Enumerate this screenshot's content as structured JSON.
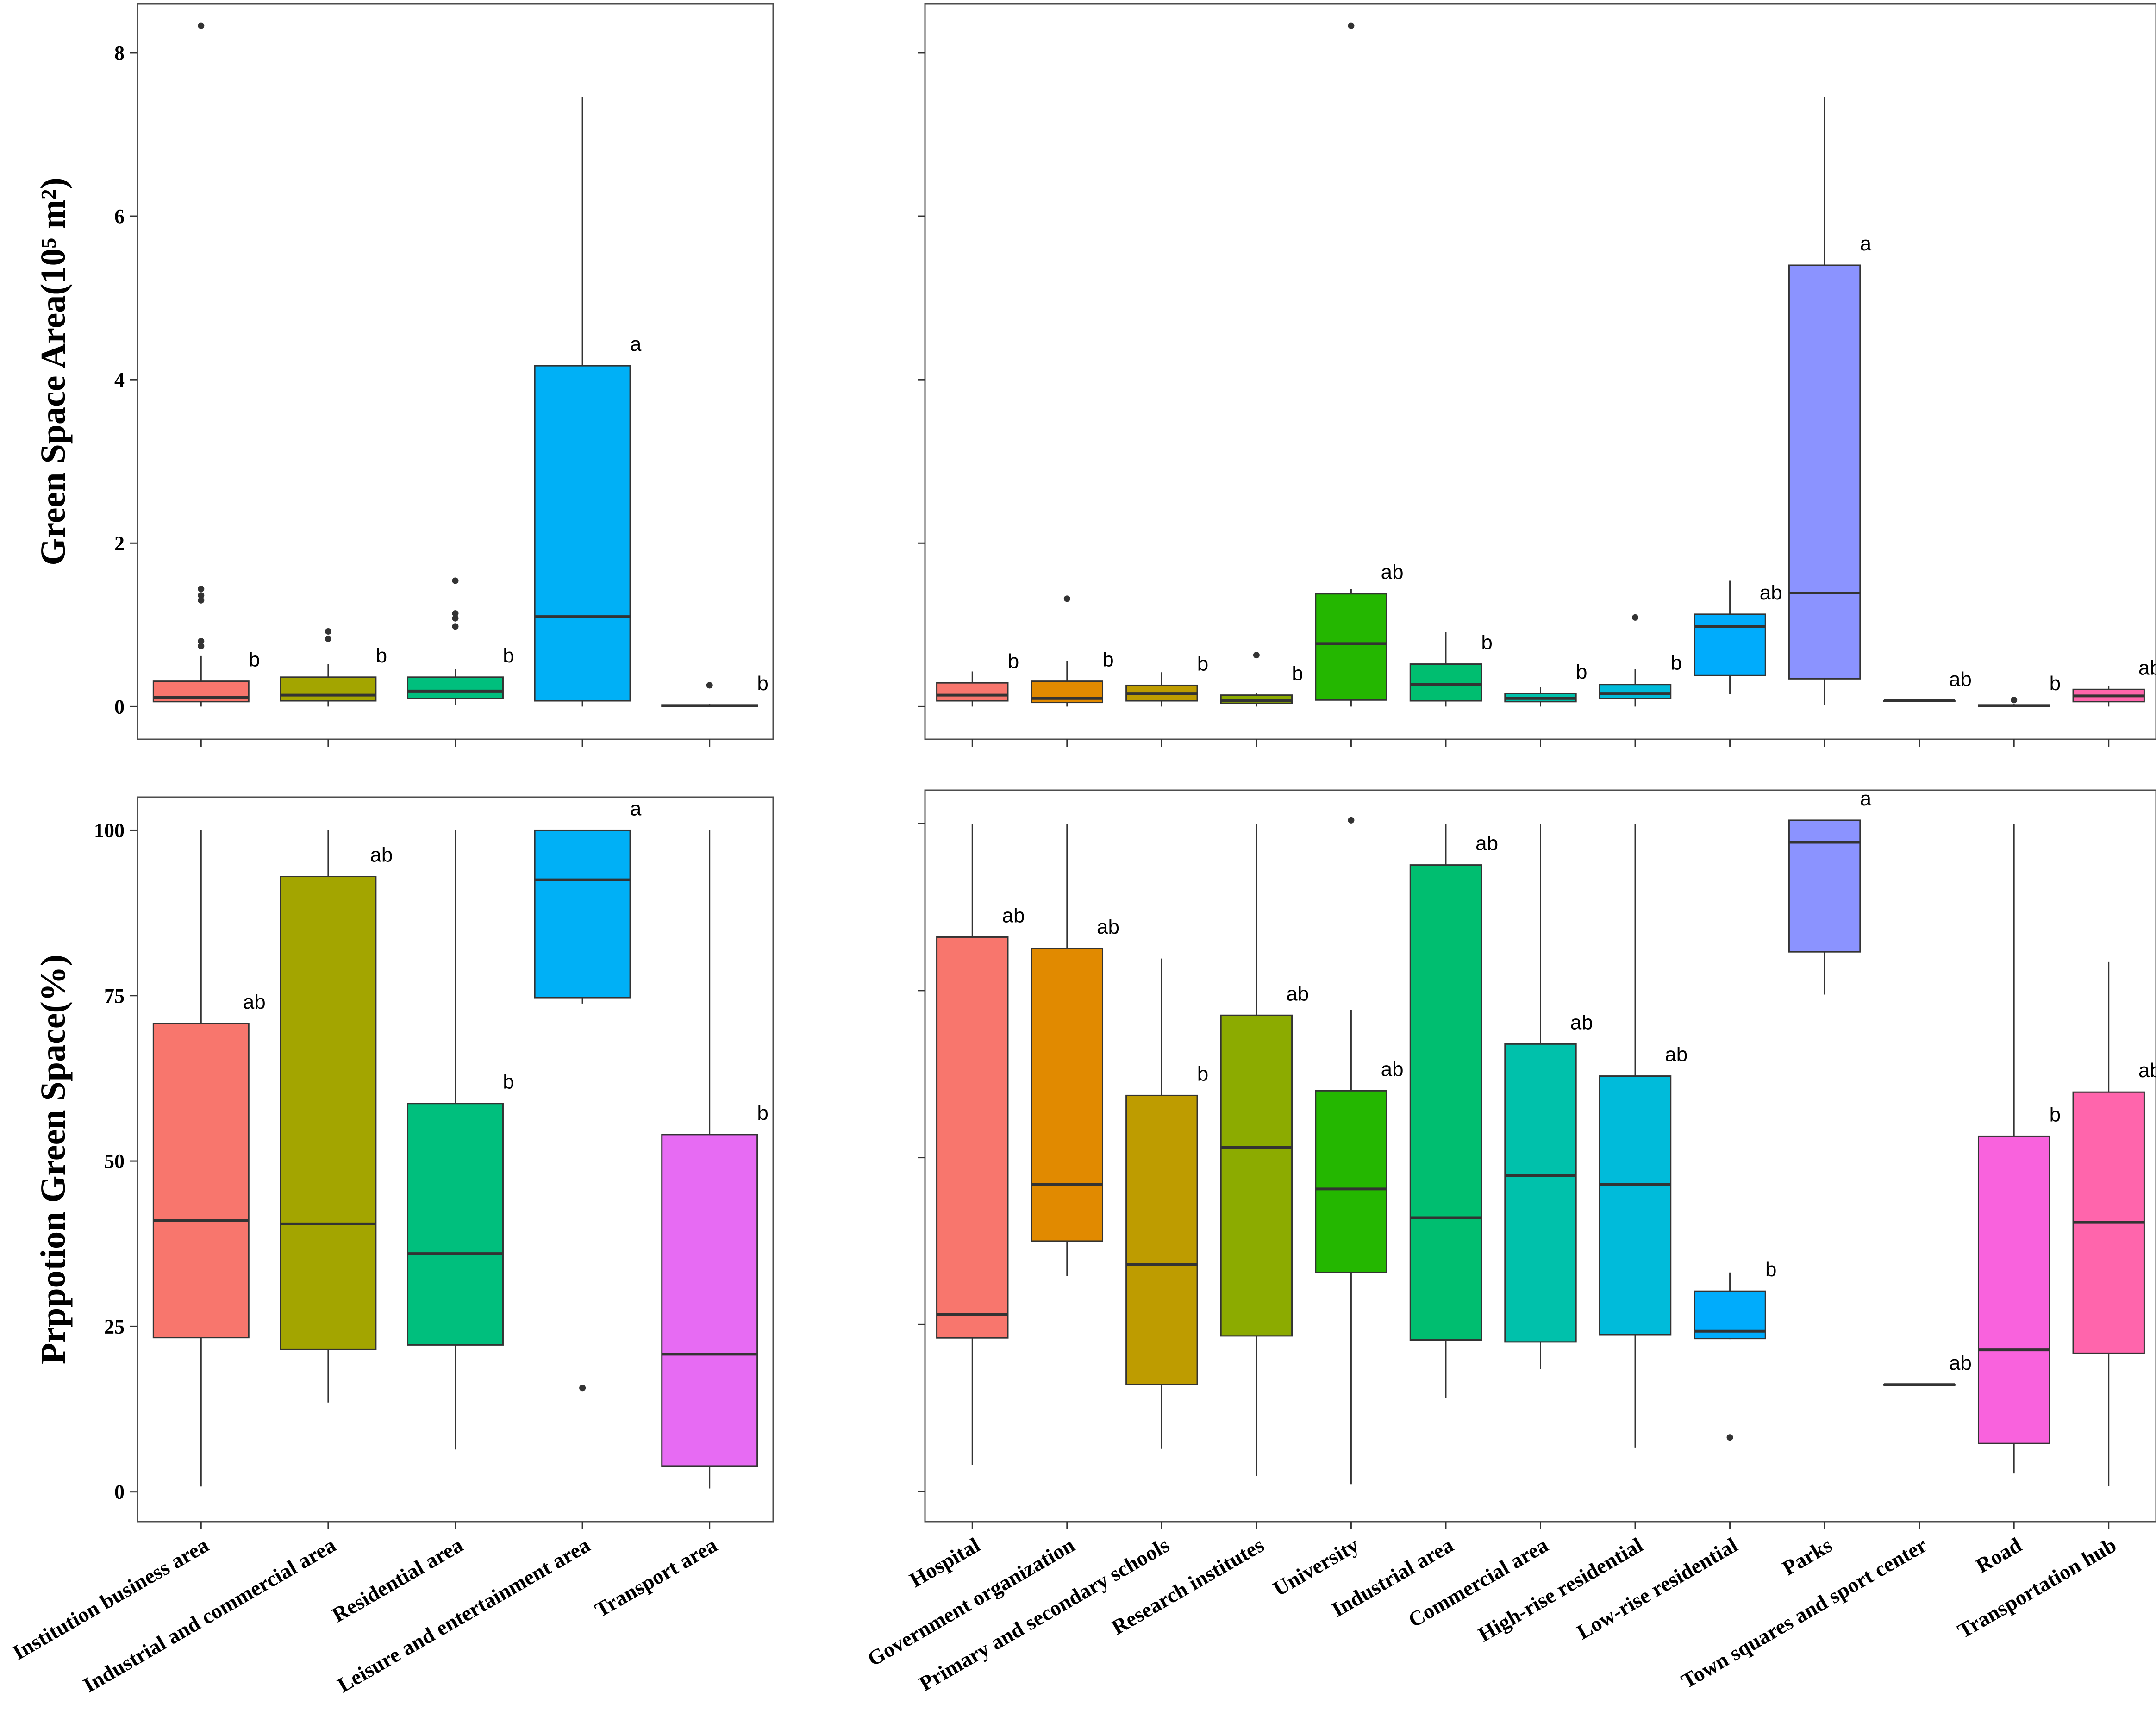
{
  "chart_data": [
    {
      "id": "p1",
      "type": "box",
      "ylabel": "Green Space Area(10⁵ m²)",
      "ylim": [
        -0.4,
        8.6
      ],
      "yticks": [
        0,
        2,
        4,
        6,
        8
      ],
      "show_tick_labels": true,
      "show_x_labels": false,
      "categories": [
        {
          "name": "Institution business area",
          "color": "#f8766d",
          "q1": 0.06,
          "median": 0.11,
          "q3": 0.31,
          "wlo": 0.0,
          "whi": 0.62,
          "outliers": [
            0.74,
            0.8,
            1.3,
            1.36,
            1.44,
            8.33
          ],
          "sig": "b"
        },
        {
          "name": "Industrial and commercial area",
          "color": "#a3a500",
          "q1": 0.07,
          "median": 0.14,
          "q3": 0.36,
          "wlo": 0.0,
          "whi": 0.52,
          "outliers": [
            0.83,
            0.92
          ],
          "sig": "b"
        },
        {
          "name": "Residential area",
          "color": "#00bf7d",
          "q1": 0.1,
          "median": 0.19,
          "q3": 0.36,
          "wlo": 0.02,
          "whi": 0.46,
          "outliers": [
            0.98,
            1.08,
            1.14,
            1.54
          ],
          "sig": "b"
        },
        {
          "name": "Leisure and entertainment area",
          "color": "#00b0f6",
          "q1": 0.07,
          "median": 1.1,
          "q3": 4.17,
          "wlo": 0.0,
          "whi": 7.46,
          "outliers": [],
          "sig": "a"
        },
        {
          "name": "Transport area",
          "color": "#e76bf3",
          "q1": 0.005,
          "median": 0.01,
          "q3": 0.02,
          "wlo": 0.0,
          "whi": 0.03,
          "outliers": [
            0.26
          ],
          "sig": "b"
        }
      ]
    },
    {
      "id": "p2",
      "type": "box",
      "ylabel": "",
      "ylim": [
        -0.4,
        8.6
      ],
      "yticks": [
        0,
        2,
        4,
        6,
        8
      ],
      "show_tick_labels": false,
      "show_x_labels": false,
      "categories": [
        {
          "name": "Hospital",
          "color": "#f8766d",
          "q1": 0.07,
          "median": 0.14,
          "q3": 0.29,
          "wlo": 0.0,
          "whi": 0.43,
          "outliers": [],
          "sig": "b"
        },
        {
          "name": "Government organization",
          "color": "#e18a00",
          "q1": 0.05,
          "median": 0.1,
          "q3": 0.31,
          "wlo": 0.0,
          "whi": 0.56,
          "outliers": [
            1.32
          ],
          "sig": "b"
        },
        {
          "name": "Primary and secondary schools",
          "color": "#be9c00",
          "q1": 0.07,
          "median": 0.16,
          "q3": 0.26,
          "wlo": 0.0,
          "whi": 0.42,
          "outliers": [],
          "sig": "b"
        },
        {
          "name": "Research institutes",
          "color": "#8cab00",
          "q1": 0.04,
          "median": 0.07,
          "q3": 0.14,
          "wlo": 0.0,
          "whi": 0.17,
          "outliers": [
            0.63
          ],
          "sig": "b"
        },
        {
          "name": "University",
          "color": "#24b700",
          "q1": 0.08,
          "median": 0.77,
          "q3": 1.38,
          "wlo": 0.0,
          "whi": 1.44,
          "outliers": [
            8.33
          ],
          "sig": "ab"
        },
        {
          "name": "Industrial area",
          "color": "#00be70",
          "q1": 0.07,
          "median": 0.27,
          "q3": 0.52,
          "wlo": 0.0,
          "whi": 0.91,
          "outliers": [],
          "sig": "b"
        },
        {
          "name": "Commercial area",
          "color": "#00c1ab",
          "q1": 0.06,
          "median": 0.1,
          "q3": 0.16,
          "wlo": 0.0,
          "whi": 0.24,
          "outliers": [],
          "sig": "b"
        },
        {
          "name": "High-rise residential",
          "color": "#00bbda",
          "q1": 0.1,
          "median": 0.16,
          "q3": 0.27,
          "wlo": 0.0,
          "whi": 0.46,
          "outliers": [
            1.09
          ],
          "sig": "b"
        },
        {
          "name": "Low-rise residential",
          "color": "#00acfc",
          "q1": 0.38,
          "median": 0.98,
          "q3": 1.13,
          "wlo": 0.15,
          "whi": 1.54,
          "outliers": [],
          "sig": "ab"
        },
        {
          "name": "Parks",
          "color": "#8b93ff",
          "q1": 0.34,
          "median": 1.39,
          "q3": 5.4,
          "wlo": 0.02,
          "whi": 7.46,
          "outliers": [],
          "sig": "a"
        },
        {
          "name": "Town squares and sport center",
          "color": "#d575fe",
          "q1": 0.07,
          "median": 0.07,
          "q3": 0.07,
          "wlo": 0.07,
          "whi": 0.07,
          "outliers": [],
          "sig": "ab"
        },
        {
          "name": "Road",
          "color": "#f962dd",
          "q1": 0.005,
          "median": 0.01,
          "q3": 0.02,
          "wlo": 0.0,
          "whi": 0.03,
          "outliers": [
            0.08
          ],
          "sig": "b"
        },
        {
          "name": "Transportation hub",
          "color": "#ff65ac",
          "q1": 0.06,
          "median": 0.13,
          "q3": 0.21,
          "wlo": 0.0,
          "whi": 0.25,
          "outliers": [],
          "sig": "ab"
        }
      ]
    },
    {
      "id": "p3",
      "type": "box",
      "ylabel": "Prppotion Green Space(%)",
      "ylim": [
        -4.5,
        105
      ],
      "yticks": [
        0,
        25,
        50,
        75,
        100
      ],
      "show_tick_labels": true,
      "show_x_labels": true,
      "categories": [
        {
          "name": "Institution business area",
          "color": "#f8766d",
          "q1": 23.3,
          "median": 41.0,
          "q3": 70.8,
          "wlo": 0.8,
          "whi": 100,
          "outliers": [],
          "sig": "ab"
        },
        {
          "name": "Industrial and commercial area",
          "color": "#a3a500",
          "q1": 21.5,
          "median": 40.5,
          "q3": 93.0,
          "wlo": 13.5,
          "whi": 100,
          "outliers": [],
          "sig": "ab"
        },
        {
          "name": "Residential area",
          "color": "#00bf7d",
          "q1": 22.2,
          "median": 36.0,
          "q3": 58.7,
          "wlo": 6.4,
          "whi": 100,
          "outliers": [],
          "sig": "b"
        },
        {
          "name": "Leisure and entertainment area",
          "color": "#00b0f6",
          "q1": 74.7,
          "median": 92.5,
          "q3": 100,
          "wlo": 73.8,
          "whi": 100,
          "outliers": [
            15.7
          ],
          "sig": "a"
        },
        {
          "name": "Transport area",
          "color": "#e76bf3",
          "q1": 3.9,
          "median": 20.8,
          "q3": 54.0,
          "wlo": 0.5,
          "whi": 100,
          "outliers": [],
          "sig": "b"
        }
      ]
    },
    {
      "id": "p4",
      "type": "box",
      "ylabel": "",
      "ylim": [
        -4.5,
        105
      ],
      "yticks": [
        0,
        25,
        50,
        75,
        100
      ],
      "show_tick_labels": false,
      "show_x_labels": true,
      "categories": [
        {
          "name": "Hospital",
          "color": "#f8766d",
          "q1": 23.0,
          "median": 26.5,
          "q3": 83.0,
          "wlo": 4.0,
          "whi": 100,
          "outliers": [],
          "sig": "ab"
        },
        {
          "name": "Government organization",
          "color": "#e18a00",
          "q1": 37.5,
          "median": 46.0,
          "q3": 81.3,
          "wlo": 32.3,
          "whi": 100,
          "outliers": [],
          "sig": "ab"
        },
        {
          "name": "Primary and secondary schools",
          "color": "#be9c00",
          "q1": 16.0,
          "median": 34.0,
          "q3": 59.3,
          "wlo": 6.4,
          "whi": 79.8,
          "outliers": [],
          "sig": "b"
        },
        {
          "name": "Research institutes",
          "color": "#8cab00",
          "q1": 23.3,
          "median": 51.5,
          "q3": 71.3,
          "wlo": 2.3,
          "whi": 100,
          "outliers": [],
          "sig": "ab"
        },
        {
          "name": "University",
          "color": "#24b700",
          "q1": 32.8,
          "median": 45.3,
          "q3": 60.0,
          "wlo": 1.1,
          "whi": 72.1,
          "outliers": [
            100.5
          ],
          "sig": "ab"
        },
        {
          "name": "Industrial area",
          "color": "#00be70",
          "q1": 22.7,
          "median": 41.0,
          "q3": 93.8,
          "wlo": 14.0,
          "whi": 100,
          "outliers": [],
          "sig": "ab"
        },
        {
          "name": "Commercial area",
          "color": "#00c1ab",
          "q1": 22.4,
          "median": 47.3,
          "q3": 67.0,
          "wlo": 18.3,
          "whi": 100,
          "outliers": [],
          "sig": "ab"
        },
        {
          "name": "High-rise residential",
          "color": "#00bbda",
          "q1": 23.5,
          "median": 46.0,
          "q3": 62.2,
          "wlo": 6.6,
          "whi": 100,
          "outliers": [],
          "sig": "ab"
        },
        {
          "name": "Low-rise residential",
          "color": "#00acfc",
          "q1": 22.9,
          "median": 24.0,
          "q3": 30.0,
          "wlo": 22.8,
          "whi": 32.8,
          "outliers": [
            8.1
          ],
          "sig": "b"
        },
        {
          "name": "Parks",
          "color": "#8b93ff",
          "q1": 80.8,
          "median": 97.2,
          "q3": 100.5,
          "wlo": 74.4,
          "whi": 100.5,
          "outliers": [],
          "sig": "a"
        },
        {
          "name": "Town squares and sport center",
          "color": "#d575fe",
          "q1": 16.0,
          "median": 16.0,
          "q3": 16.0,
          "wlo": 16.0,
          "whi": 16.0,
          "outliers": [],
          "sig": "ab"
        },
        {
          "name": "Road",
          "color": "#f962dd",
          "q1": 7.2,
          "median": 21.2,
          "q3": 53.2,
          "wlo": 2.7,
          "whi": 100,
          "outliers": [],
          "sig": "b"
        },
        {
          "name": "Transportation hub",
          "color": "#ff65ac",
          "q1": 20.7,
          "median": 40.3,
          "q3": 59.8,
          "wlo": 0.8,
          "whi": 79.3,
          "outliers": [],
          "sig": "ab"
        }
      ]
    }
  ]
}
